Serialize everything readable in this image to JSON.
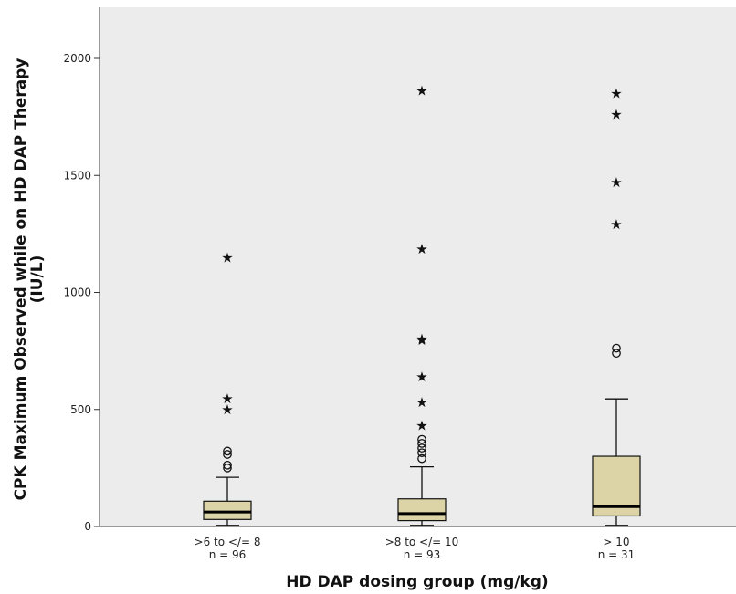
{
  "chart_data": {
    "type": "boxplot",
    "title": "",
    "xlabel": "HD DAP dosing group (mg/kg)",
    "ylabel_line1": "CPK Maximum Observed while on HD DAP Therapy",
    "ylabel_line2": "(IU/L)",
    "ylim": [
      0,
      2200
    ],
    "yticks": [
      0,
      500,
      1000,
      1500,
      2000
    ],
    "grid": false,
    "background_color": "#ececec",
    "box_color": "#dcd4a6",
    "categories": [
      ">6 to </= 8",
      ">8 to </= 10",
      "> 10"
    ],
    "n_labels": [
      "n = 96",
      "n = 93",
      "n = 31"
    ],
    "boxes": [
      {
        "whisker_low": 5,
        "q1": 30,
        "median": 62,
        "q3": 108,
        "whisker_high": 210,
        "outliers": [
          250,
          262,
          308,
          322
        ],
        "extremes": [
          500,
          545,
          1148
        ]
      },
      {
        "whisker_low": 5,
        "q1": 25,
        "median": 55,
        "q3": 118,
        "whisker_high": 255,
        "outliers": [
          290,
          315,
          335,
          355,
          372
        ],
        "extremes": [
          430,
          530,
          640,
          795,
          802,
          1185,
          1862
        ]
      },
      {
        "whisker_low": 5,
        "q1": 45,
        "median": 85,
        "q3": 300,
        "whisker_high": 545,
        "outliers": [
          740,
          762
        ],
        "extremes": [
          1290,
          1470,
          1760,
          1850
        ]
      }
    ]
  }
}
